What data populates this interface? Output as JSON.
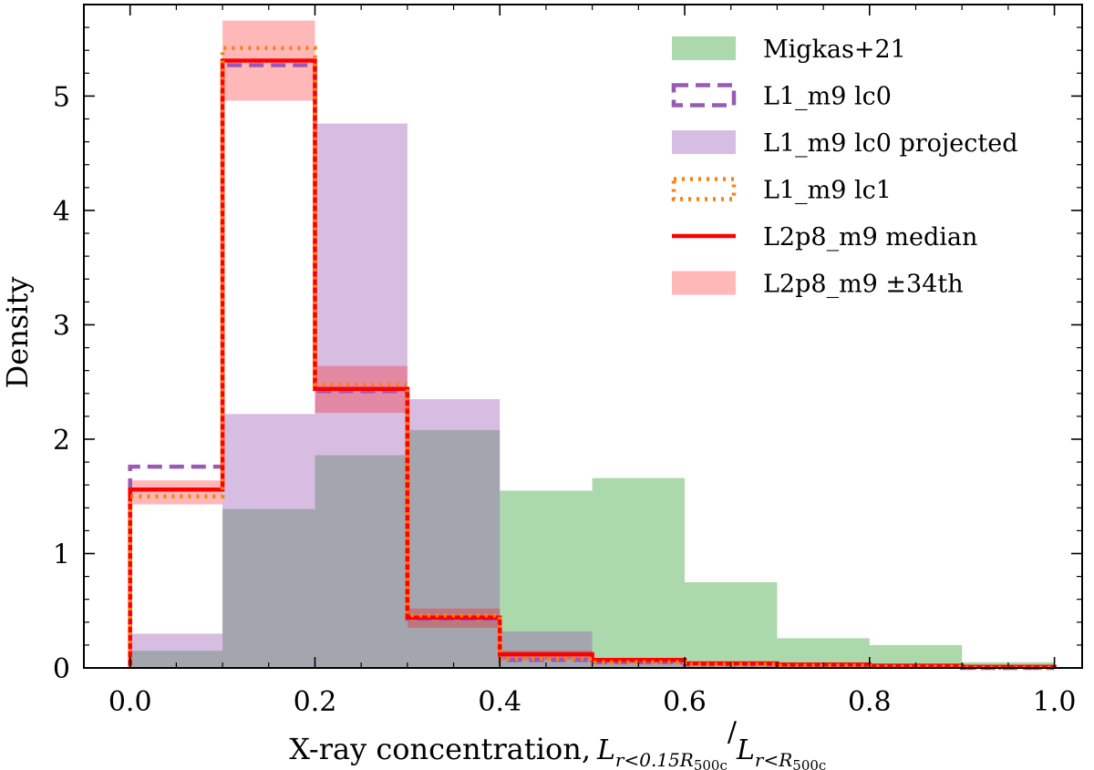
{
  "chart_data": {
    "type": "histogram",
    "title": "",
    "xlabel": "X-ray concentration,",
    "xlabel_math": "L_{r<0.15R_{500c}} / L_{r<R_{500c}}",
    "ylabel": "Density",
    "xlim": [
      -0.05,
      1.03
    ],
    "ylim": [
      0,
      5.8
    ],
    "xticks": [
      0.0,
      0.2,
      0.4,
      0.6,
      0.8,
      1.0
    ],
    "xtick_labels": [
      "0.0",
      "0.2",
      "0.4",
      "0.6",
      "0.8",
      "1.0"
    ],
    "yticks": [
      0,
      1,
      2,
      3,
      4,
      5
    ],
    "ytick_labels": [
      "0",
      "1",
      "2",
      "3",
      "4",
      "5"
    ],
    "bin_edges": [
      0.0,
      0.1,
      0.2,
      0.3,
      0.4,
      0.5,
      0.6,
      0.7,
      0.8,
      0.9,
      1.0
    ],
    "legend_position": "top-right",
    "series": [
      {
        "name": "Migkas+21",
        "style": "filled",
        "color": "#2ca02c",
        "alpha": 0.4,
        "values": [
          0.15,
          1.39,
          1.86,
          2.08,
          1.55,
          1.66,
          0.75,
          0.26,
          0.2,
          0.05
        ]
      },
      {
        "name": "L1_m9 lc0",
        "style": "step-dashed",
        "color": "#9b59b6",
        "values": [
          1.76,
          5.27,
          2.42,
          0.43,
          0.07,
          0.05,
          0.03,
          0.02,
          0.01,
          0.0
        ]
      },
      {
        "name": "L1_m9 lc0 projected",
        "style": "filled",
        "color": "#9b59b6",
        "alpha": 0.4,
        "values": [
          0.3,
          2.22,
          4.76,
          2.35,
          0.32,
          0.05,
          0.02,
          0.01,
          0.0,
          0.0
        ]
      },
      {
        "name": "L1_m9 lc1",
        "style": "step-dotted",
        "color": "#ff7f0e",
        "values": [
          1.5,
          5.42,
          2.48,
          0.46,
          0.08,
          0.05,
          0.03,
          0.02,
          0.01,
          0.0
        ]
      },
      {
        "name": "L2p8_m9 median",
        "style": "step-solid",
        "color": "#ff0000",
        "values": [
          1.56,
          5.31,
          2.44,
          0.44,
          0.12,
          0.07,
          0.04,
          0.03,
          0.02,
          0.01
        ]
      },
      {
        "name": "L2p8_m9 ±34th",
        "style": "band",
        "color": "#ff0000",
        "alpha": 0.28,
        "lower": [
          1.43,
          4.96,
          2.23,
          0.35,
          0.07,
          0.04,
          0.02,
          0.01,
          0.0,
          0.0
        ],
        "upper": [
          1.64,
          5.66,
          2.64,
          0.52,
          0.15,
          0.08,
          0.05,
          0.04,
          0.03,
          0.02
        ]
      }
    ]
  }
}
